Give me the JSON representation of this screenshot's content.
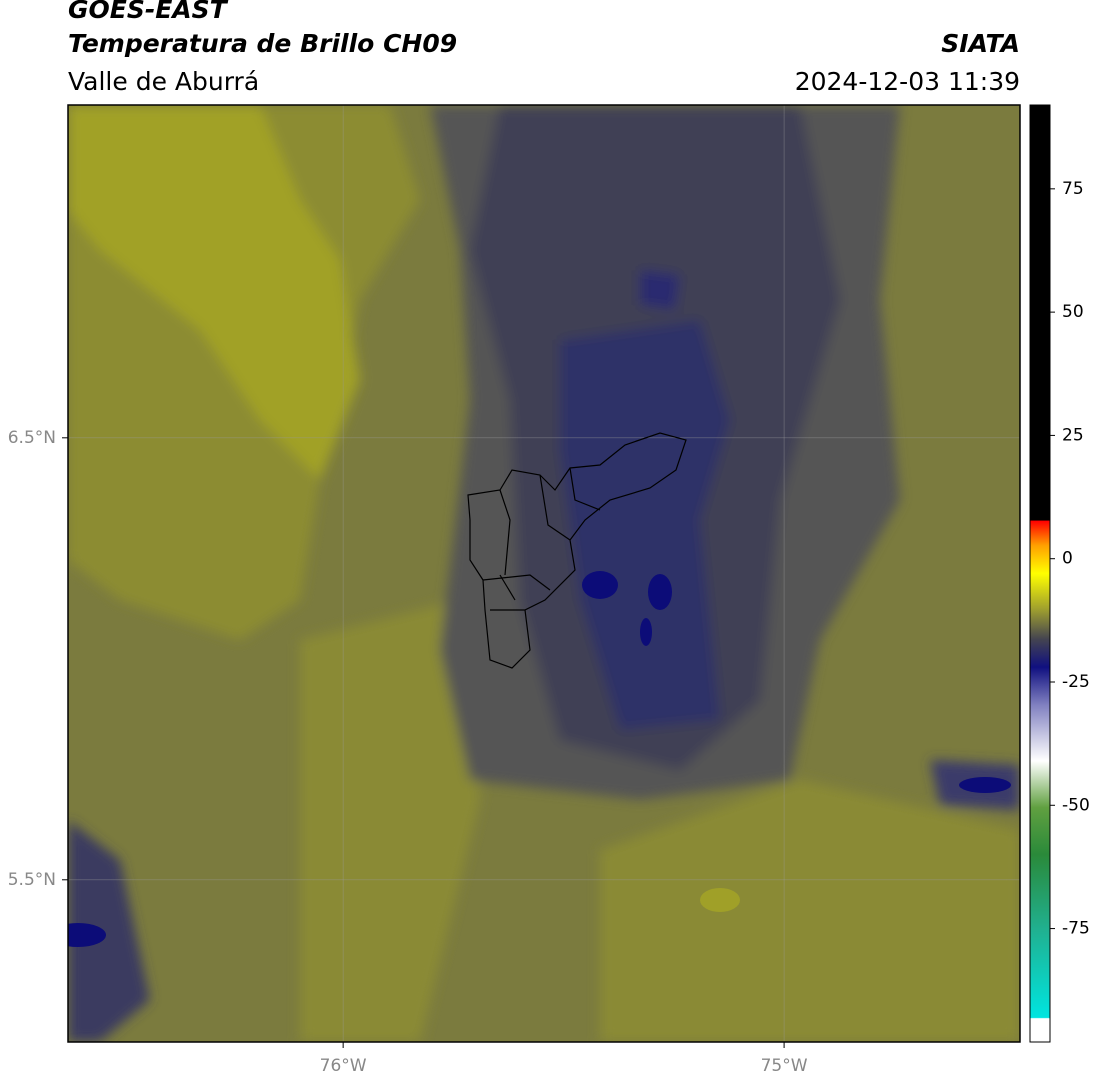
{
  "header": {
    "satellite": "GOES-EAST",
    "title": "Temperatura de Brillo CH09",
    "region": "Valle de Aburrá",
    "agency": "SIATA",
    "datetime": "2024-12-03 11:39"
  },
  "map": {
    "xlim": [
      -76.624,
      -74.465
    ],
    "ylim": [
      5.133,
      7.253
    ],
    "xticks": [
      {
        "value": -76,
        "label": "76°W"
      },
      {
        "value": -75,
        "label": "75°W"
      }
    ],
    "yticks": [
      {
        "value": 6.5,
        "label": "6.5°N"
      },
      {
        "value": 5.5,
        "label": "5.5°N"
      }
    ]
  },
  "colorbar": {
    "lim": [
      -98,
      92
    ],
    "ticks": [
      75,
      50,
      25,
      0,
      -25,
      -50,
      -75
    ]
  }
}
